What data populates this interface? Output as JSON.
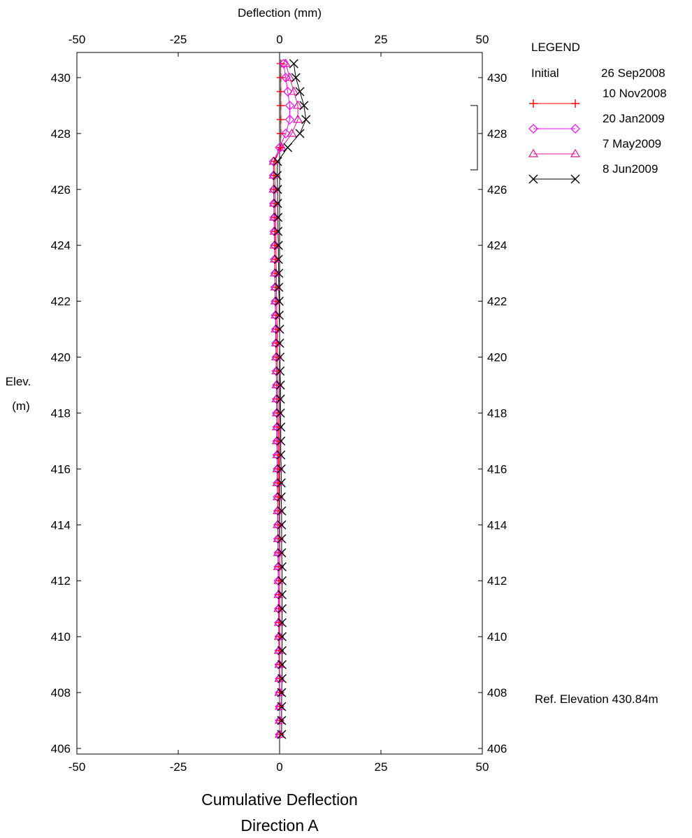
{
  "chart_data": {
    "type": "line",
    "title": "Cumulative Deflection",
    "subtitle": "Direction  A",
    "xlabel": "Deflection (mm)",
    "ylabel_line1": "Elev.",
    "ylabel_line2": "(m)",
    "xlim": [
      -50,
      50
    ],
    "ylim": [
      405.8,
      430.9
    ],
    "x_ticks": [
      -50,
      -25,
      0,
      25,
      50
    ],
    "x_tick_labels": [
      "-50",
      "-25",
      "0",
      "25",
      "50"
    ],
    "y_ticks": [
      406,
      408,
      410,
      412,
      414,
      416,
      418,
      420,
      422,
      424,
      426,
      428,
      430
    ],
    "y_tick_labels": [
      "406",
      "408",
      "410",
      "412",
      "414",
      "416",
      "418",
      "420",
      "422",
      "424",
      "426",
      "428",
      "430"
    ],
    "grid": false,
    "legend_position": "top-right",
    "legend_title": "LEGEND",
    "initial_label": "Initial",
    "initial_date": "26 Sep2008",
    "ref_elevation_text": "Ref. Elevation 430.84m",
    "zone_bracket": [
      426.7,
      429.0
    ],
    "elevations": [
      430.5,
      430.0,
      429.5,
      429.0,
      428.5,
      428.0,
      427.5,
      427.0,
      426.5,
      426.0,
      425.5,
      425.0,
      424.5,
      424.0,
      423.5,
      423.0,
      422.5,
      422.0,
      421.5,
      421.0,
      420.5,
      420.0,
      419.5,
      419.0,
      418.5,
      418.0,
      417.5,
      417.0,
      416.5,
      416.0,
      415.5,
      415.0,
      414.5,
      414.0,
      413.5,
      413.0,
      412.5,
      412.0,
      411.5,
      411.0,
      410.5,
      410.0,
      409.5,
      409.0,
      408.5,
      408.0,
      407.5,
      407.0,
      406.5
    ],
    "series": [
      {
        "name": "10 Nov2008",
        "color": "#ff0000",
        "marker": "plus",
        "values": [
          0.3,
          0.3,
          0.3,
          0.3,
          0.3,
          0.3,
          0.3,
          -1.2,
          -1.2,
          -1.1,
          -1.1,
          -1.0,
          -1.0,
          -0.9,
          -0.9,
          -0.8,
          -0.8,
          -0.7,
          -0.7,
          -0.6,
          -0.6,
          -0.5,
          -0.5,
          -0.4,
          -0.4,
          -0.4,
          -0.3,
          -0.3,
          -0.3,
          -0.2,
          -0.2,
          -0.2,
          -0.1,
          -0.1,
          -0.1,
          0.0,
          0.0,
          0.0,
          0.0,
          0.0,
          0.0,
          0.0,
          0.0,
          0.0,
          0.0,
          0.0,
          0.0,
          0.0,
          0.0
        ]
      },
      {
        "name": "20 Jan2009",
        "color": "#ff00ff",
        "marker": "diamond",
        "values": [
          1.0,
          1.5,
          2.0,
          2.5,
          2.5,
          1.5,
          0.0,
          -1.5,
          -1.5,
          -1.4,
          -1.4,
          -1.3,
          -1.3,
          -1.2,
          -1.2,
          -1.1,
          -1.1,
          -1.0,
          -1.0,
          -0.9,
          -0.9,
          -0.8,
          -0.8,
          -0.7,
          -0.7,
          -0.7,
          -0.6,
          -0.6,
          -0.6,
          -0.5,
          -0.5,
          -0.5,
          -0.4,
          -0.4,
          -0.4,
          -0.3,
          -0.3,
          -0.3,
          -0.2,
          -0.2,
          -0.2,
          -0.1,
          -0.1,
          -0.1,
          0.0,
          0.0,
          0.0,
          0.0,
          0.0
        ]
      },
      {
        "name": "7 May2009",
        "color": "#e0119a",
        "marker": "triangle",
        "values": [
          1.5,
          2.5,
          3.5,
          4.5,
          4.5,
          3.0,
          0.5,
          -1.5,
          -1.5,
          -1.5,
          -1.4,
          -1.4,
          -1.3,
          -1.3,
          -1.2,
          -1.2,
          -1.1,
          -1.1,
          -1.0,
          -1.0,
          -0.9,
          -0.9,
          -0.8,
          -0.8,
          -0.8,
          -0.7,
          -0.7,
          -0.7,
          -0.6,
          -0.6,
          -0.6,
          -0.5,
          -0.5,
          -0.5,
          -0.4,
          -0.4,
          -0.4,
          -0.3,
          -0.3,
          -0.3,
          -0.2,
          -0.2,
          -0.2,
          -0.1,
          -0.1,
          -0.1,
          0.0,
          0.0,
          0.0
        ]
      },
      {
        "name": "8 Jun2009",
        "color": "#000000",
        "marker": "cross",
        "values": [
          3.5,
          4.0,
          5.0,
          6.0,
          6.5,
          5.0,
          2.0,
          -0.5,
          -0.6,
          -0.5,
          -0.5,
          -0.4,
          -0.4,
          -0.3,
          -0.3,
          -0.2,
          -0.2,
          -0.1,
          -0.1,
          0.0,
          0.0,
          0.1,
          0.1,
          0.2,
          0.2,
          0.2,
          0.3,
          0.3,
          0.3,
          0.4,
          0.4,
          0.4,
          0.5,
          0.5,
          0.5,
          0.5,
          0.6,
          0.6,
          0.6,
          0.6,
          0.6,
          0.6,
          0.6,
          0.6,
          0.6,
          0.5,
          0.5,
          0.5,
          0.5
        ]
      }
    ]
  }
}
